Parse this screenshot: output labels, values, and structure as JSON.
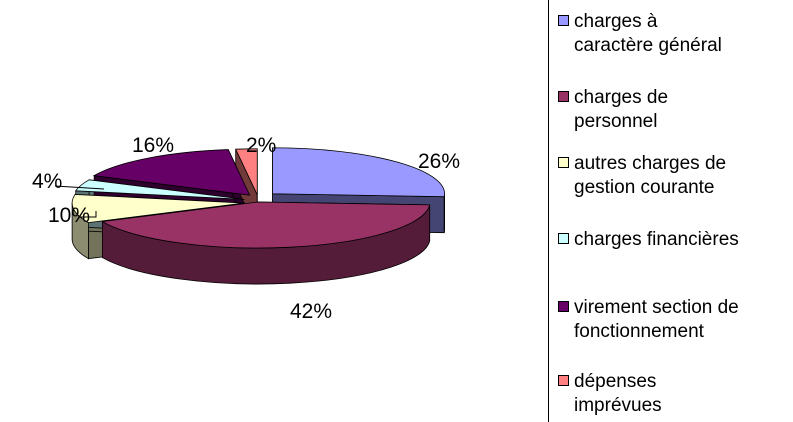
{
  "chart_data": {
    "type": "pie",
    "style": "3d-exploded",
    "title": "",
    "legend_position": "right",
    "categories": [
      "charges à caractère général",
      "charges de personnel",
      "autres charges de gestion courante",
      "charges financières",
      "virement section de fonctionnement",
      "dépenses imprévues"
    ],
    "values": [
      26,
      42,
      10,
      4,
      16,
      2
    ],
    "value_labels": [
      "26%",
      "42%",
      "10%",
      "4%",
      "16%",
      "2%"
    ],
    "colors": [
      "#9999FF",
      "#993366",
      "#FFFFCC",
      "#CCFFFF",
      "#660066",
      "#FF8080"
    ]
  },
  "legend": {
    "items": [
      {
        "line1": "charges à",
        "line2": "caractère général"
      },
      {
        "line1": "charges de",
        "line2": "personnel"
      },
      {
        "line1": "autres charges de",
        "line2": "gestion courante"
      },
      {
        "line1": "charges financières",
        "line2": ""
      },
      {
        "line1": "virement section de",
        "line2": "fonctionnement"
      },
      {
        "line1": "dépenses",
        "line2": "imprévues"
      }
    ]
  }
}
